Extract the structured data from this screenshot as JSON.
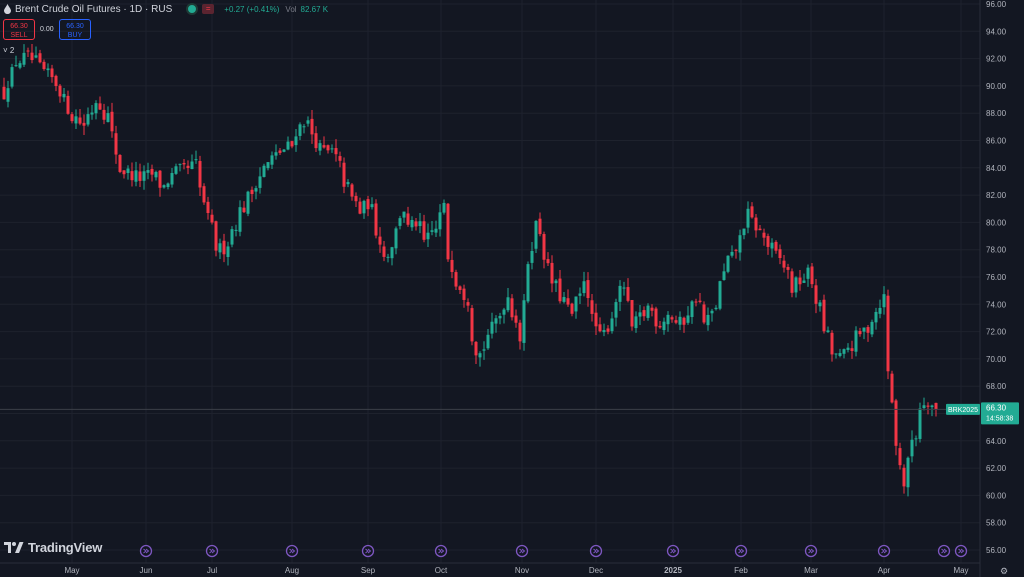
{
  "header": {
    "title": "Brent Crude Oil Futures · 1D · RUS",
    "change": "+0.27 (+0.41%)",
    "volume_label": "Vol",
    "volume_value": "82.67 K"
  },
  "trade": {
    "sell_price": "66.30",
    "sell_label": "SELL",
    "spread": "0.00",
    "buy_price": "66.30",
    "buy_label": "BUY"
  },
  "indicators_toggle": "˅ 2",
  "logo_text": "TradingView",
  "colors": {
    "up": "#22ab94",
    "down": "#f23645",
    "background": "#131722",
    "grid": "#1e222d",
    "event_icon": "#7e57c2"
  },
  "chart_data": {
    "type": "candlestick",
    "symbol": "BRK2025",
    "y_ticks": [
      "96.00",
      "94.00",
      "92.00",
      "90.00",
      "88.00",
      "86.00",
      "84.00",
      "82.00",
      "80.00",
      "78.00",
      "76.00",
      "74.00",
      "72.00",
      "70.00",
      "68.00",
      "66.00",
      "64.00",
      "62.00",
      "60.00",
      "58.00",
      "56.00"
    ],
    "ylim": [
      56,
      96
    ],
    "x_ticks": [
      "May",
      "Jun",
      "Jul",
      "Aug",
      "Sep",
      "Oct",
      "Nov",
      "Dec",
      "2025",
      "Feb",
      "Mar",
      "Apr",
      "May"
    ],
    "last_price_label": "66.30",
    "countdown": "14:58:38",
    "last_price": 66.3,
    "close_path": [
      [
        0,
        89.5
      ],
      [
        5,
        91.8
      ],
      [
        10,
        92.1
      ],
      [
        15,
        91
      ],
      [
        20,
        90.2
      ],
      [
        25,
        88
      ],
      [
        30,
        87.2
      ],
      [
        35,
        89
      ],
      [
        40,
        87.5
      ],
      [
        43,
        84
      ],
      [
        48,
        83.5
      ],
      [
        52,
        83.2
      ],
      [
        56,
        83.5
      ],
      [
        60,
        82.6
      ],
      [
        64,
        83.6
      ],
      [
        68,
        83.8
      ],
      [
        72,
        84.2
      ],
      [
        75,
        81.5
      ],
      [
        80,
        78.2
      ],
      [
        82,
        77.8
      ],
      [
        85,
        79
      ],
      [
        88,
        80.5
      ],
      [
        92,
        81.8
      ],
      [
        96,
        83.5
      ],
      [
        100,
        84.5
      ],
      [
        104,
        85.2
      ],
      [
        108,
        85.6
      ],
      [
        110,
        86.8
      ],
      [
        113,
        87.5
      ],
      [
        116,
        86.5
      ],
      [
        118,
        85.5
      ],
      [
        121,
        85
      ],
      [
        124,
        85.2
      ],
      [
        127,
        83.5
      ],
      [
        130,
        82
      ],
      [
        134,
        80.8
      ],
      [
        137,
        81.5
      ],
      [
        140,
        79.5
      ],
      [
        143,
        77.5
      ],
      [
        146,
        78.5
      ],
      [
        148,
        80.2
      ],
      [
        150,
        81
      ],
      [
        152,
        79.5
      ],
      [
        155,
        80
      ],
      [
        158,
        78.5
      ],
      [
        162,
        79.5
      ],
      [
        165,
        81
      ],
      [
        167,
        77.5
      ],
      [
        170,
        75.8
      ],
      [
        174,
        74.5
      ],
      [
        176,
        71.8
      ],
      [
        178,
        69.8
      ],
      [
        181,
        71.5
      ],
      [
        185,
        72.8
      ],
      [
        189,
        74.6
      ],
      [
        192,
        73
      ],
      [
        194,
        71.5
      ],
      [
        196,
        76
      ],
      [
        198,
        78.5
      ],
      [
        200,
        79.8
      ],
      [
        202,
        79
      ],
      [
        204,
        76.5
      ],
      [
        207,
        75.2
      ],
      [
        210,
        74.3
      ],
      [
        213,
        73.2
      ],
      [
        216,
        74.5
      ],
      [
        218,
        76
      ],
      [
        221,
        72.8
      ],
      [
        224,
        71.5
      ],
      [
        227,
        72.5
      ],
      [
        230,
        74.5
      ],
      [
        233,
        75.4
      ],
      [
        235,
        72
      ],
      [
        238,
        72.8
      ],
      [
        242,
        73.8
      ],
      [
        246,
        72.6
      ],
      [
        250,
        73.5
      ],
      [
        253,
        72.2
      ],
      [
        256,
        73.2
      ],
      [
        260,
        74.6
      ],
      [
        263,
        72.6
      ],
      [
        266,
        73.3
      ],
      [
        268,
        74.6
      ],
      [
        271,
        77
      ],
      [
        274,
        77.5
      ],
      [
        277,
        79.4
      ],
      [
        279,
        80.5
      ],
      [
        281,
        80
      ],
      [
        284,
        79.2
      ],
      [
        287,
        78.3
      ],
      [
        290,
        77.5
      ],
      [
        293,
        76.8
      ],
      [
        296,
        75.2
      ],
      [
        299,
        75.8
      ],
      [
        302,
        76.2
      ],
      [
        305,
        74.4
      ],
      [
        308,
        72.2
      ],
      [
        311,
        70.4
      ],
      [
        314,
        70
      ],
      [
        317,
        70.8
      ],
      [
        320,
        71.5
      ],
      [
        324,
        72.3
      ],
      [
        328,
        73.9
      ],
      [
        330,
        74.5
      ],
      [
        331,
        71
      ],
      [
        333,
        67
      ],
      [
        334,
        64.5
      ],
      [
        336,
        62.5
      ],
      [
        338,
        60.8
      ],
      [
        340,
        63.8
      ],
      [
        342,
        64.5
      ],
      [
        344,
        66.5
      ],
      [
        346,
        67.5
      ],
      [
        348,
        66.6
      ],
      [
        350,
        66.3
      ]
    ]
  }
}
